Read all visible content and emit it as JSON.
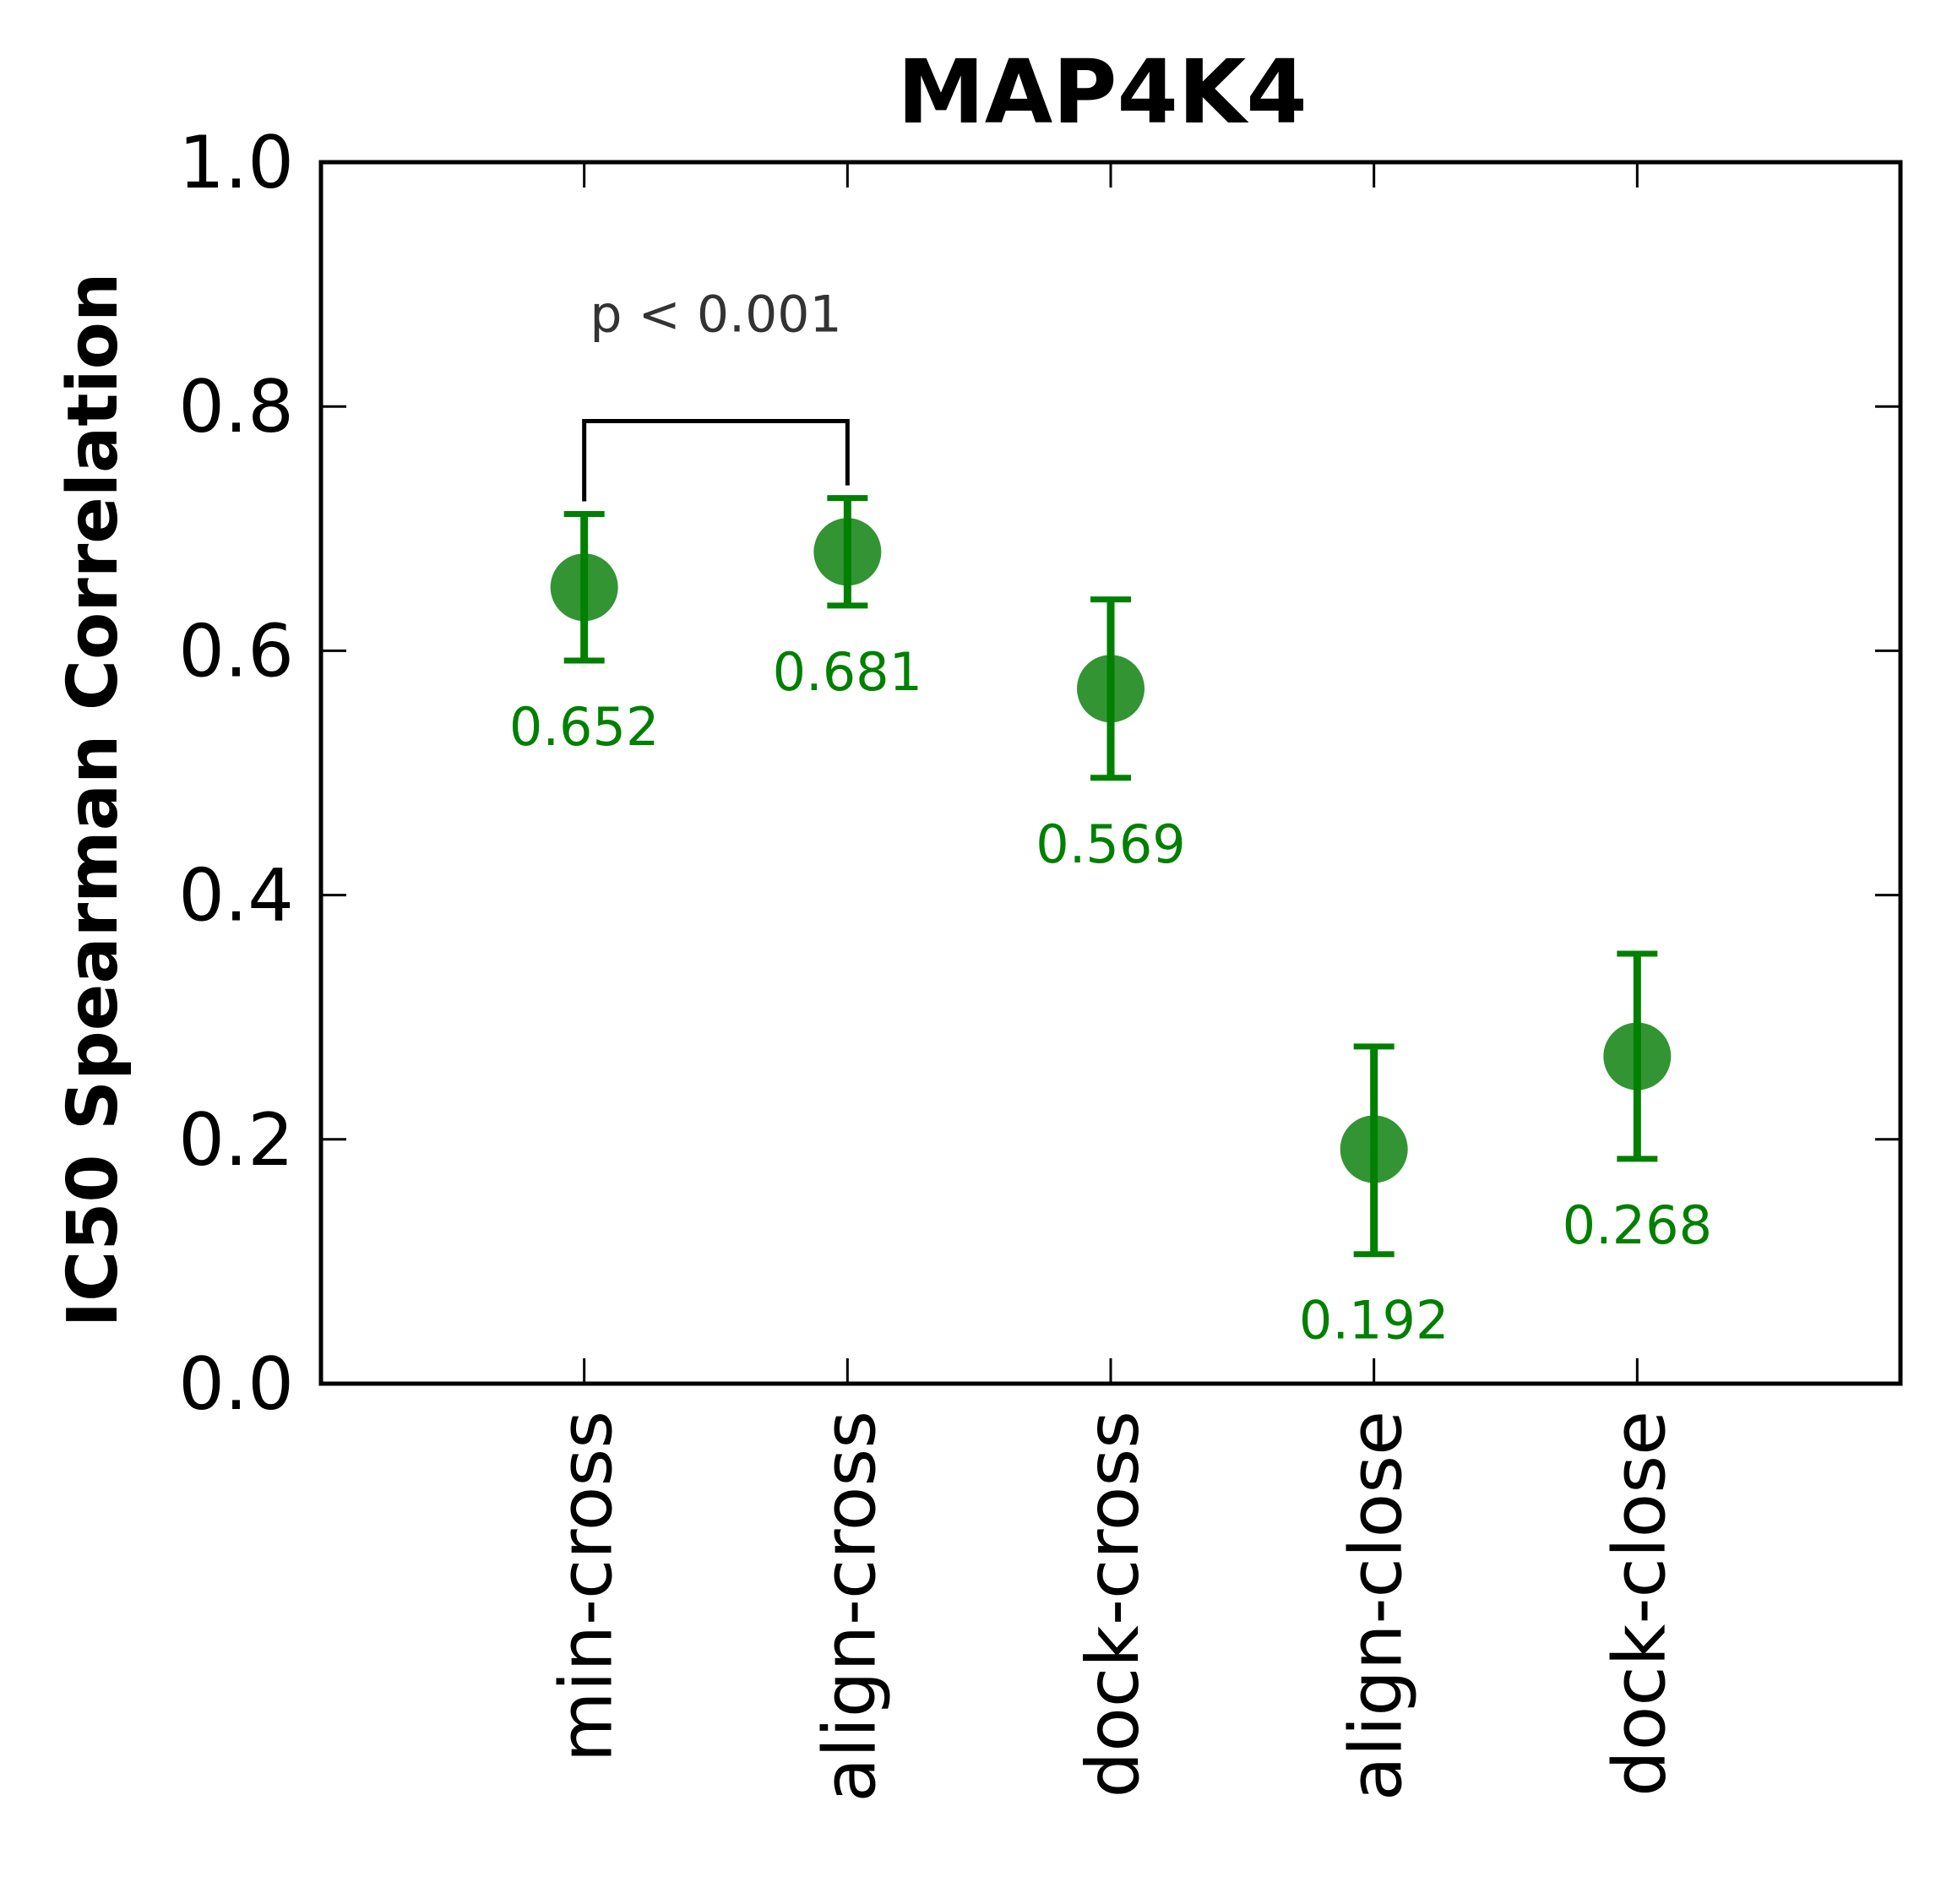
{
  "chart_data": {
    "type": "scatter",
    "title": "MAP4K4",
    "xlabel": "",
    "ylabel": "IC50 Spearman Correlation",
    "ylim": [
      0.0,
      1.0
    ],
    "yticks": [
      "0.0",
      "0.2",
      "0.4",
      "0.6",
      "0.8",
      "1.0"
    ],
    "ytick_values": [
      0.0,
      0.2,
      0.4,
      0.6,
      0.8,
      1.0
    ],
    "categories": [
      "min-cross",
      "align-cross",
      "dock-cross",
      "align-close",
      "dock-close"
    ],
    "values": [
      0.652,
      0.681,
      0.569,
      0.192,
      0.268
    ],
    "value_labels": [
      "0.652",
      "0.681",
      "0.569",
      "0.192",
      "0.268"
    ],
    "error_low": [
      0.592,
      0.637,
      0.496,
      0.106,
      0.184
    ],
    "error_high": [
      0.712,
      0.725,
      0.642,
      0.276,
      0.352
    ],
    "grid": false,
    "colors": {
      "marker": "#228B22",
      "errorbar": "#008000",
      "label": "#008000",
      "bracket": "#000000"
    },
    "significance": {
      "from": "min-cross",
      "to": "align-cross",
      "label": "p < 0.001",
      "bracket_y": 0.788
    }
  }
}
